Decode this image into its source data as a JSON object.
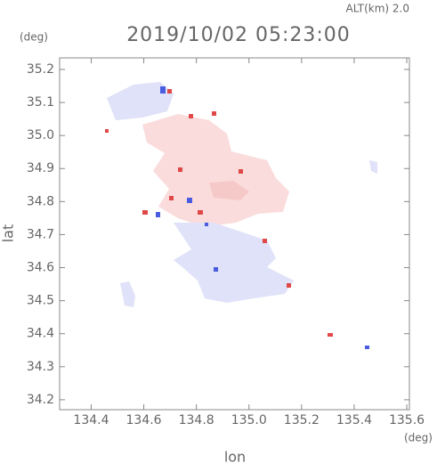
{
  "chart_data": {
    "type": "map",
    "title": "2019/10/02 05:23:00",
    "subtitle": "ALT(km) 2.0",
    "x_label": "lon",
    "y_label": "lat",
    "x_unit": "(deg)",
    "y_unit": "(deg)",
    "xlim": [
      134.28,
      135.61
    ],
    "ylim": [
      34.17,
      35.235
    ],
    "xticks": [
      134.4,
      134.6,
      134.8,
      {
        "value": 135,
        "label": "135.0"
      },
      135.2,
      135.4,
      135.6
    ],
    "yticks": [
      34.2,
      34.3,
      34.4,
      34.5,
      34.6,
      34.7,
      34.8,
      34.9,
      {
        "value": 35,
        "label": "35.0"
      },
      35.1,
      35.2
    ]
  }
}
